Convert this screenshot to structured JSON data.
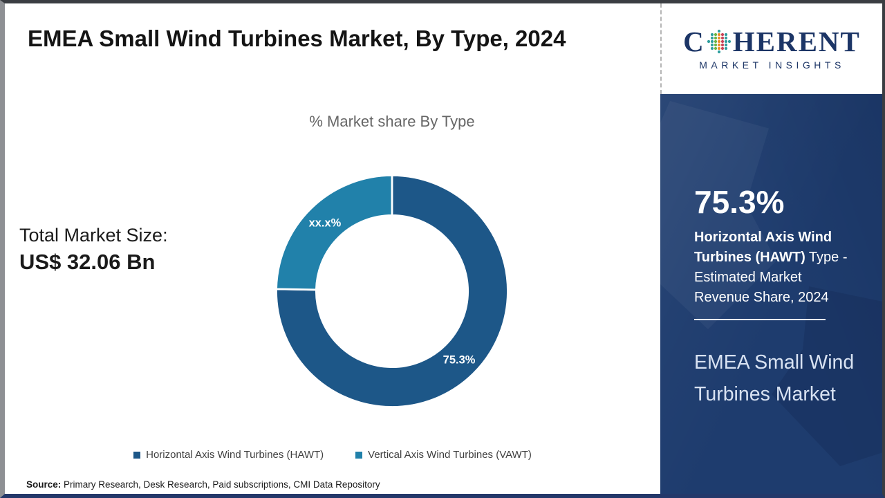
{
  "header": {
    "title": "EMEA Small Wind Turbines Market, By Type, 2024",
    "brand": {
      "word_prefix": "C",
      "word_suffix": "HERENT",
      "tagline": "MARKET INSIGHTS",
      "globe_icon": "dotted-globe",
      "navy": "#1c3566",
      "dot_colors": [
        "#2e9e9e",
        "#2e9e9e",
        "#6db644",
        "#ef8b22",
        "#c9445a",
        "#2e9e9e",
        "#2e9e9e"
      ]
    }
  },
  "chart_data": {
    "type": "pie",
    "subtype": "donut",
    "title": "% Market share By Type",
    "inner_radius_ratio": 0.655,
    "start_angle_deg": 0,
    "direction": "clockwise",
    "legend_position": "bottom",
    "series": [
      {
        "name": "Horizontal Axis Wind Turbines (HAWT)",
        "value": 75.3,
        "label": "75.3%",
        "color": "#1d5788"
      },
      {
        "name": "Vertical Axis Wind Turbines (VAWT)",
        "value": 24.7,
        "label": "xx.x%",
        "color": "#2181aa"
      }
    ]
  },
  "stats": {
    "total_label": "Total Market Size:",
    "total_value": "US$ 32.06 Bn"
  },
  "sidebar": {
    "highlight_value": "75.3%",
    "highlight_bold": "Horizontal Axis Wind Turbines (HAWT)",
    "highlight_rest": " Type - Estimated Market Revenue Share, 2024",
    "market_name": "EMEA Small Wind Turbines Market"
  },
  "footer": {
    "source_label": "Source:",
    "source_text": " Primary Research, Desk Research, Paid subscriptions, CMI Data Repository"
  },
  "colors": {
    "sidebar_bg": "#1e3c6e",
    "hawt": "#1d5788",
    "vawt": "#2181aa",
    "subtitle_gray": "#666666"
  }
}
